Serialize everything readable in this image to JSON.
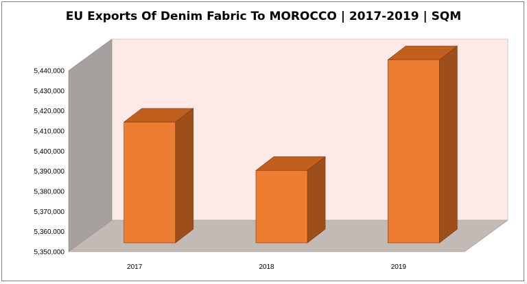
{
  "chart_data": {
    "type": "bar",
    "title": "EU Exports Of Denim Fabric To MOROCCO | 2017-2019 | SQM",
    "categories": [
      "2017",
      "2018",
      "2019"
    ],
    "values": [
      5410000,
      5386000,
      5441000
    ],
    "xlabel": "",
    "ylabel": "",
    "ylim": [
      5350000,
      5440000
    ],
    "yticks": [
      "5,350,000",
      "5,360,000",
      "5,370,000",
      "5,380,000",
      "5,390,000",
      "5,400,000",
      "5,410,000",
      "5,420,000",
      "5,430,000",
      "5,440,000"
    ],
    "grid": false,
    "legend": "none",
    "bar_color": "#ed7d31",
    "back_wall_color": "#fde9e7",
    "side_wall_color": "#a6a19f",
    "floor_color": "#c3b9b5"
  }
}
